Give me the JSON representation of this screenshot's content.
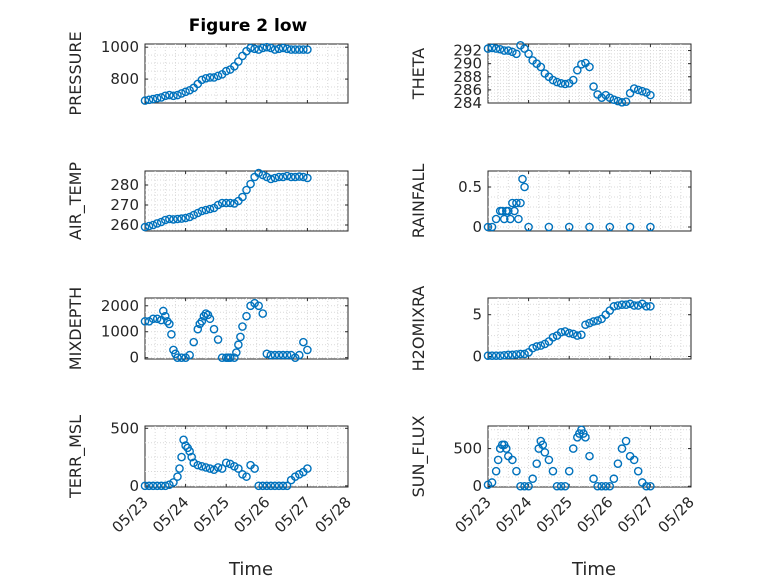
{
  "figure": {
    "title": "Figure 2 low"
  },
  "x_label": "Time",
  "marker_color": "#0072BD",
  "x_tick_labels": [
    "05/23",
    "05/24",
    "05/25",
    "05/26",
    "05/27",
    "05/28"
  ],
  "chart_data": [
    {
      "type": "scatter",
      "id": "pressure",
      "ylabel": "PRESSURE",
      "xlim": [
        0,
        5
      ],
      "ylim": [
        650,
        1020
      ],
      "yticks": [
        800,
        1000
      ],
      "x": [
        0,
        0.1,
        0.2,
        0.3,
        0.4,
        0.5,
        0.6,
        0.7,
        0.8,
        0.9,
        1.0,
        1.1,
        1.2,
        1.3,
        1.4,
        1.5,
        1.6,
        1.7,
        1.8,
        1.9,
        2.0,
        2.1,
        2.2,
        2.3,
        2.4,
        2.5,
        2.6,
        2.7,
        2.8,
        2.9,
        3.0,
        3.1,
        3.2,
        3.3,
        3.4,
        3.5,
        3.6,
        3.7,
        3.8,
        3.9,
        4.0
      ],
      "y": [
        665,
        670,
        675,
        680,
        685,
        695,
        700,
        695,
        700,
        710,
        720,
        730,
        745,
        770,
        795,
        805,
        810,
        810,
        820,
        830,
        850,
        860,
        880,
        910,
        945,
        975,
        995,
        990,
        985,
        995,
        1000,
        995,
        985,
        990,
        995,
        990,
        985,
        985,
        985,
        985,
        985
      ]
    },
    {
      "type": "scatter",
      "id": "theta",
      "ylabel": "THETA",
      "xlim": [
        0,
        5
      ],
      "ylim": [
        284,
        293
      ],
      "yticks": [
        284,
        286,
        288,
        290,
        292
      ],
      "x": [
        0,
        0.1,
        0.2,
        0.3,
        0.4,
        0.5,
        0.6,
        0.7,
        0.8,
        0.9,
        1.0,
        1.1,
        1.2,
        1.3,
        1.4,
        1.5,
        1.6,
        1.7,
        1.8,
        1.9,
        2.0,
        2.1,
        2.2,
        2.3,
        2.4,
        2.5,
        2.6,
        2.7,
        2.8,
        2.9,
        3.0,
        3.1,
        3.2,
        3.3,
        3.4,
        3.5,
        3.6,
        3.7,
        3.8,
        3.9,
        4.0
      ],
      "y": [
        292.3,
        292.4,
        292.3,
        292.2,
        292.0,
        292.0,
        291.8,
        291.5,
        292.8,
        292.3,
        291.5,
        290.5,
        290.0,
        289.5,
        288.5,
        288.0,
        287.5,
        287.2,
        287.0,
        286.9,
        287.0,
        287.5,
        289.0,
        289.9,
        290.1,
        289.5,
        286.5,
        285.3,
        284.8,
        285.2,
        284.8,
        284.5,
        284.3,
        284.1,
        284.2,
        285.5,
        286.2,
        286.0,
        285.8,
        285.6,
        285.2
      ]
    },
    {
      "type": "scatter",
      "id": "air_temp",
      "ylabel": "AIR_TEMP",
      "xlim": [
        0,
        5
      ],
      "ylim": [
        257,
        287
      ],
      "yticks": [
        260,
        270,
        280
      ],
      "x": [
        0,
        0.1,
        0.2,
        0.3,
        0.4,
        0.5,
        0.6,
        0.7,
        0.8,
        0.9,
        1.0,
        1.1,
        1.2,
        1.3,
        1.4,
        1.5,
        1.6,
        1.7,
        1.8,
        1.9,
        2.0,
        2.1,
        2.2,
        2.3,
        2.4,
        2.5,
        2.6,
        2.7,
        2.8,
        2.9,
        3.0,
        3.1,
        3.2,
        3.3,
        3.4,
        3.5,
        3.6,
        3.7,
        3.8,
        3.9,
        4.0
      ],
      "y": [
        259,
        259.5,
        260,
        260.8,
        261.5,
        262.5,
        263,
        262.8,
        263,
        263.2,
        263.5,
        264,
        265,
        266,
        267,
        267.5,
        268,
        268.5,
        270,
        271,
        271,
        271,
        270.8,
        272,
        274,
        277.5,
        280.5,
        284,
        286,
        285,
        284,
        283,
        283.5,
        284,
        284,
        284.5,
        284,
        284,
        284.2,
        284,
        283.5
      ]
    },
    {
      "type": "scatter",
      "id": "rainfall",
      "ylabel": "RAINFALL",
      "xlim": [
        0,
        5
      ],
      "ylim": [
        -0.05,
        0.7
      ],
      "yticks": [
        0,
        0.5
      ],
      "x": [
        0,
        0.1,
        0.2,
        0.3,
        0.35,
        0.4,
        0.45,
        0.5,
        0.55,
        0.6,
        0.65,
        0.7,
        0.75,
        0.8,
        0.85,
        0.9,
        1.0,
        1.5,
        2.0,
        2.5,
        3.0,
        3.5,
        4.0
      ],
      "y": [
        0,
        0,
        0.1,
        0.2,
        0.2,
        0.1,
        0.2,
        0.2,
        0.1,
        0.3,
        0.2,
        0.3,
        0.1,
        0.3,
        0.6,
        0.5,
        0,
        0,
        0,
        0,
        0,
        0,
        0
      ]
    },
    {
      "type": "scatter",
      "id": "mixdepth",
      "ylabel": "MIXDEPTH",
      "xlim": [
        0,
        5
      ],
      "ylim": [
        -50,
        2300
      ],
      "yticks": [
        0,
        1000,
        2000
      ],
      "x": [
        0,
        0.1,
        0.2,
        0.3,
        0.4,
        0.45,
        0.5,
        0.55,
        0.6,
        0.65,
        0.7,
        0.75,
        0.8,
        0.9,
        1.0,
        1.1,
        1.2,
        1.3,
        1.35,
        1.4,
        1.45,
        1.5,
        1.55,
        1.6,
        1.7,
        1.8,
        1.9,
        2.0,
        2.05,
        2.1,
        2.2,
        2.25,
        2.3,
        2.35,
        2.4,
        2.5,
        2.6,
        2.7,
        2.8,
        2.9,
        3.0,
        3.1,
        3.2,
        3.3,
        3.4,
        3.5,
        3.6,
        3.7,
        3.8,
        3.9,
        4.0
      ],
      "y": [
        1400,
        1400,
        1500,
        1500,
        1450,
        1800,
        1600,
        1400,
        1300,
        900,
        300,
        150,
        0,
        0,
        0,
        100,
        600,
        1100,
        1300,
        1400,
        1600,
        1700,
        1650,
        1500,
        1100,
        700,
        0,
        0,
        0,
        0,
        0,
        200,
        500,
        800,
        1200,
        1600,
        2000,
        2100,
        2000,
        1700,
        150,
        100,
        100,
        100,
        100,
        100,
        100,
        0,
        100,
        600,
        300
      ]
    },
    {
      "type": "scatter",
      "id": "h2omixra",
      "ylabel": "H2OMIXRA",
      "xlim": [
        0,
        5
      ],
      "ylim": [
        -0.3,
        7
      ],
      "yticks": [
        0,
        5
      ],
      "x": [
        0,
        0.1,
        0.2,
        0.3,
        0.4,
        0.5,
        0.6,
        0.7,
        0.8,
        0.9,
        1.0,
        1.1,
        1.2,
        1.3,
        1.4,
        1.5,
        1.6,
        1.7,
        1.8,
        1.9,
        2.0,
        2.1,
        2.2,
        2.3,
        2.4,
        2.5,
        2.6,
        2.7,
        2.8,
        2.9,
        3.0,
        3.1,
        3.2,
        3.3,
        3.4,
        3.5,
        3.6,
        3.7,
        3.8,
        3.9,
        4.0
      ],
      "y": [
        0.1,
        0.1,
        0.1,
        0.1,
        0.15,
        0.2,
        0.2,
        0.25,
        0.3,
        0.3,
        0.5,
        1.0,
        1.2,
        1.3,
        1.5,
        1.8,
        2.3,
        2.5,
        2.9,
        3.0,
        2.8,
        2.7,
        2.5,
        2.6,
        3.8,
        4.0,
        4.2,
        4.3,
        4.5,
        5.0,
        5.5,
        6.0,
        6.1,
        6.2,
        6.2,
        6.3,
        6.1,
        6.1,
        6.3,
        6.0,
        6.0
      ]
    },
    {
      "type": "scatter",
      "id": "terr_msl",
      "ylabel": "TERR_MSL",
      "xlim": [
        0,
        5
      ],
      "ylim": [
        -10,
        520
      ],
      "yticks": [
        0,
        500
      ],
      "x": [
        0,
        0.1,
        0.2,
        0.3,
        0.4,
        0.5,
        0.6,
        0.7,
        0.8,
        0.85,
        0.9,
        0.95,
        1.0,
        1.05,
        1.1,
        1.15,
        1.2,
        1.3,
        1.4,
        1.5,
        1.6,
        1.7,
        1.8,
        1.9,
        2.0,
        2.1,
        2.2,
        2.3,
        2.4,
        2.5,
        2.6,
        2.7,
        2.8,
        2.9,
        3.0,
        3.1,
        3.2,
        3.3,
        3.4,
        3.5,
        3.6,
        3.7,
        3.8,
        3.9,
        4.0
      ],
      "y": [
        0,
        0,
        0,
        0,
        0,
        0,
        10,
        30,
        80,
        150,
        250,
        400,
        350,
        330,
        300,
        250,
        200,
        180,
        170,
        160,
        150,
        140,
        160,
        150,
        200,
        190,
        170,
        150,
        100,
        80,
        180,
        150,
        0,
        0,
        0,
        0,
        0,
        0,
        0,
        0,
        50,
        80,
        100,
        120,
        150
      ]
    },
    {
      "type": "scatter",
      "id": "sun_flux",
      "ylabel": "SUN_FLUX",
      "xlim": [
        0,
        5
      ],
      "ylim": [
        -10,
        800
      ],
      "yticks": [
        0,
        500
      ],
      "x": [
        0,
        0.1,
        0.2,
        0.25,
        0.3,
        0.35,
        0.4,
        0.45,
        0.5,
        0.6,
        0.7,
        0.8,
        0.9,
        1.0,
        1.1,
        1.2,
        1.25,
        1.3,
        1.35,
        1.4,
        1.5,
        1.6,
        1.7,
        1.8,
        1.9,
        2.0,
        2.1,
        2.2,
        2.25,
        2.3,
        2.35,
        2.4,
        2.5,
        2.6,
        2.7,
        2.8,
        2.9,
        3.0,
        3.1,
        3.2,
        3.3,
        3.4,
        3.5,
        3.6,
        3.7,
        3.8,
        3.9,
        4.0
      ],
      "y": [
        20,
        50,
        200,
        350,
        500,
        550,
        550,
        500,
        400,
        350,
        200,
        0,
        0,
        0,
        100,
        300,
        500,
        600,
        550,
        450,
        350,
        200,
        0,
        0,
        0,
        200,
        500,
        650,
        700,
        750,
        700,
        650,
        400,
        100,
        0,
        0,
        0,
        0,
        100,
        300,
        500,
        600,
        400,
        350,
        200,
        50,
        0,
        0
      ]
    }
  ]
}
